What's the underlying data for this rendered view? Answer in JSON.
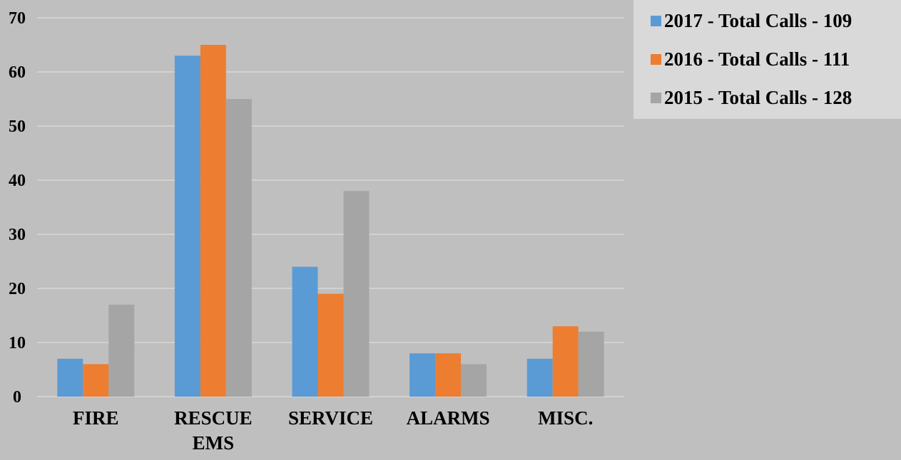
{
  "chart_data": {
    "type": "bar",
    "categories": [
      [
        "FIRE"
      ],
      [
        "RESCUE",
        "EMS"
      ],
      [
        "SERVICE"
      ],
      [
        "ALARMS"
      ],
      [
        "MISC."
      ]
    ],
    "series": [
      {
        "name": "2017 - Total Calls - 109",
        "color": "#5b9bd5",
        "values": [
          7,
          63,
          24,
          8,
          7
        ]
      },
      {
        "name": "2016 - Total Calls - 111",
        "color": "#ed7d31",
        "values": [
          6,
          65,
          19,
          8,
          13
        ]
      },
      {
        "name": "2015 - Total Calls - 128",
        "color": "#a5a5a5",
        "values": [
          17,
          55,
          38,
          6,
          12
        ]
      }
    ],
    "yticks": [
      "0",
      "10",
      "20",
      "30",
      "40",
      "50",
      "60",
      "70"
    ],
    "ylim": [
      0,
      70
    ],
    "grid": true,
    "gridline_color": "#d9d9d9",
    "legend_position": "top-right",
    "title": "",
    "xlabel": "",
    "ylabel": ""
  }
}
